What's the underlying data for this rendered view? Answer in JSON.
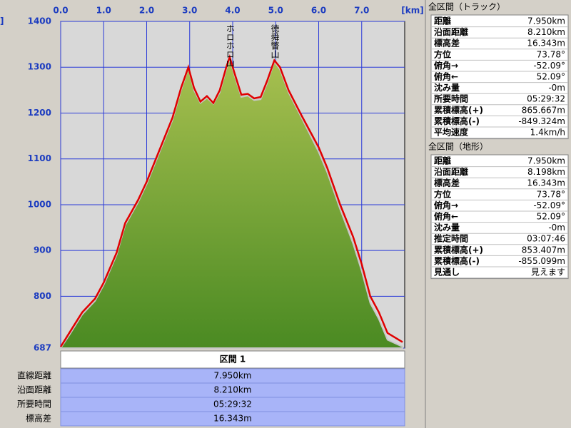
{
  "chart_data": {
    "type": "area",
    "y_label": "]",
    "x_label": "[km]",
    "x": [
      0,
      0.2,
      0.5,
      0.8,
      1.0,
      1.3,
      1.5,
      1.8,
      2.0,
      2.3,
      2.6,
      2.8,
      2.97,
      3.1,
      3.25,
      3.4,
      3.55,
      3.7,
      3.85,
      3.93,
      4.05,
      4.2,
      4.35,
      4.5,
      4.65,
      4.8,
      4.97,
      5.1,
      5.3,
      5.6,
      6.0,
      6.2,
      6.5,
      6.8,
      7.0,
      7.2,
      7.4,
      7.6,
      7.95
    ],
    "series": [
      {
        "name": "地形",
        "color": "#5e9a30",
        "values": [
          687,
          715,
          760,
          790,
          825,
          890,
          955,
          1005,
          1045,
          1115,
          1185,
          1250,
          1298,
          1250,
          1222,
          1233,
          1220,
          1245,
          1295,
          1318,
          1280,
          1235,
          1238,
          1228,
          1230,
          1265,
          1312,
          1295,
          1245,
          1190,
          1115,
          1070,
          990,
          915,
          855,
          785,
          750,
          705,
          690
        ]
      },
      {
        "name": "トラック",
        "color": "#e00000",
        "values": [
          690,
          720,
          765,
          795,
          830,
          895,
          960,
          1010,
          1050,
          1120,
          1190,
          1255,
          1300,
          1255,
          1225,
          1237,
          1222,
          1250,
          1300,
          1322,
          1285,
          1240,
          1242,
          1232,
          1235,
          1270,
          1315,
          1300,
          1250,
          1195,
          1125,
          1080,
          1000,
          930,
          870,
          800,
          765,
          720,
          700
        ]
      }
    ],
    "annotations": [
      {
        "text": "ホロホロ山",
        "x": 3.93
      },
      {
        "text": "徳舜瞥山",
        "x": 4.97
      }
    ],
    "xlim": [
      0,
      8.0
    ],
    "ylim": [
      687,
      1400
    ],
    "xticks": [
      {
        "value": 0,
        "label": "0.0"
      },
      {
        "value": 1,
        "label": "1.0"
      },
      {
        "value": 2,
        "label": "2.0"
      },
      {
        "value": 3,
        "label": "3.0"
      },
      {
        "value": 4,
        "label": "4.0"
      },
      {
        "value": 5,
        "label": "5.0"
      },
      {
        "value": 6,
        "label": "6.0"
      },
      {
        "value": 7,
        "label": "7.0"
      }
    ],
    "yticks": [
      687,
      800,
      900,
      1000,
      1100,
      1200,
      1300,
      1400
    ],
    "grid": true
  },
  "section": {
    "title": "区間 1",
    "rows": [
      [
        "直線距離",
        "7.950km"
      ],
      [
        "沿面距離",
        "8.210km"
      ],
      [
        "所要時間",
        "05:29:32"
      ],
      [
        "標高差",
        "16.343m"
      ]
    ]
  },
  "panels": [
    {
      "title": "全区間（トラック）",
      "rows": [
        [
          "距離",
          "7.950km"
        ],
        [
          "沿面距離",
          "8.210km"
        ],
        [
          "標高差",
          "16.343m"
        ],
        [
          "方位",
          "73.78°"
        ],
        [
          "俯角→",
          "-52.09°"
        ],
        [
          "俯角←",
          "52.09°"
        ],
        [
          "沈み量",
          "-0m"
        ],
        [
          "所要時間",
          "05:29:32"
        ],
        [
          "累積標高(+)",
          "865.667m"
        ],
        [
          "累積標高(-)",
          "-849.324m"
        ],
        [
          "平均速度",
          "1.4km/h"
        ]
      ]
    },
    {
      "title": "全区間（地形）",
      "rows": [
        [
          "距離",
          "7.950km"
        ],
        [
          "沿面距離",
          "8.198km"
        ],
        [
          "標高差",
          "16.343m"
        ],
        [
          "方位",
          "73.78°"
        ],
        [
          "俯角→",
          "-52.09°"
        ],
        [
          "俯角←",
          "52.09°"
        ],
        [
          "沈み量",
          "-0m"
        ],
        [
          "推定時間",
          "03:07:46"
        ],
        [
          "累積標高(+)",
          "853.407m"
        ],
        [
          "累積標高(-)",
          "-855.099m"
        ],
        [
          "見通し",
          "見えます"
        ]
      ]
    }
  ]
}
